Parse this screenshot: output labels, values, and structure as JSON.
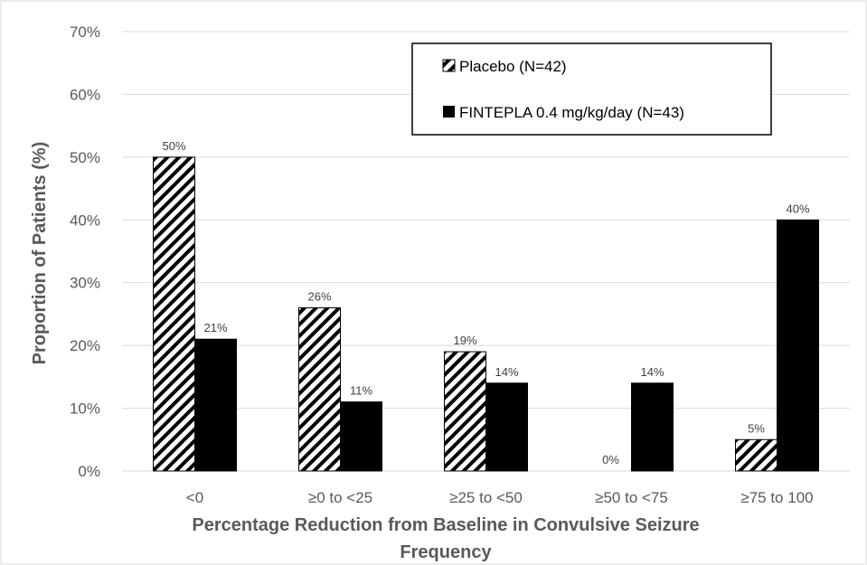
{
  "chart_data": {
    "type": "bar",
    "categories": [
      "<0",
      "≥0 to <25",
      "≥25 to <50",
      "≥50 to <75",
      "≥75 to 100"
    ],
    "series": [
      {
        "name": "Placebo (N=42)",
        "values": [
          50,
          26,
          19,
          0,
          5
        ],
        "labels": [
          "50%",
          "26%",
          "19%",
          "0%",
          "5%"
        ],
        "fill": "hatch",
        "color": "#000000"
      },
      {
        "name": "FINTEPLA 0.4 mg/kg/day (N=43)",
        "values": [
          21,
          11,
          14,
          14,
          40
        ],
        "labels": [
          "21%",
          "11%",
          "14%",
          "14%",
          "40%"
        ],
        "fill": "solid",
        "color": "#000000"
      }
    ],
    "xlabel_line1": "Percentage Reduction from Baseline in Convulsive Seizure",
    "xlabel_line2": "Frequency",
    "ylabel": "Proportion of Patients (%)",
    "ylim": [
      0,
      70
    ],
    "yticks": [
      0,
      10,
      20,
      30,
      40,
      50,
      60,
      70
    ],
    "ytick_labels": [
      "0%",
      "10%",
      "20%",
      "30%",
      "40%",
      "50%",
      "60%",
      "70%"
    ],
    "grid": true,
    "legend_position": "top-right"
  }
}
